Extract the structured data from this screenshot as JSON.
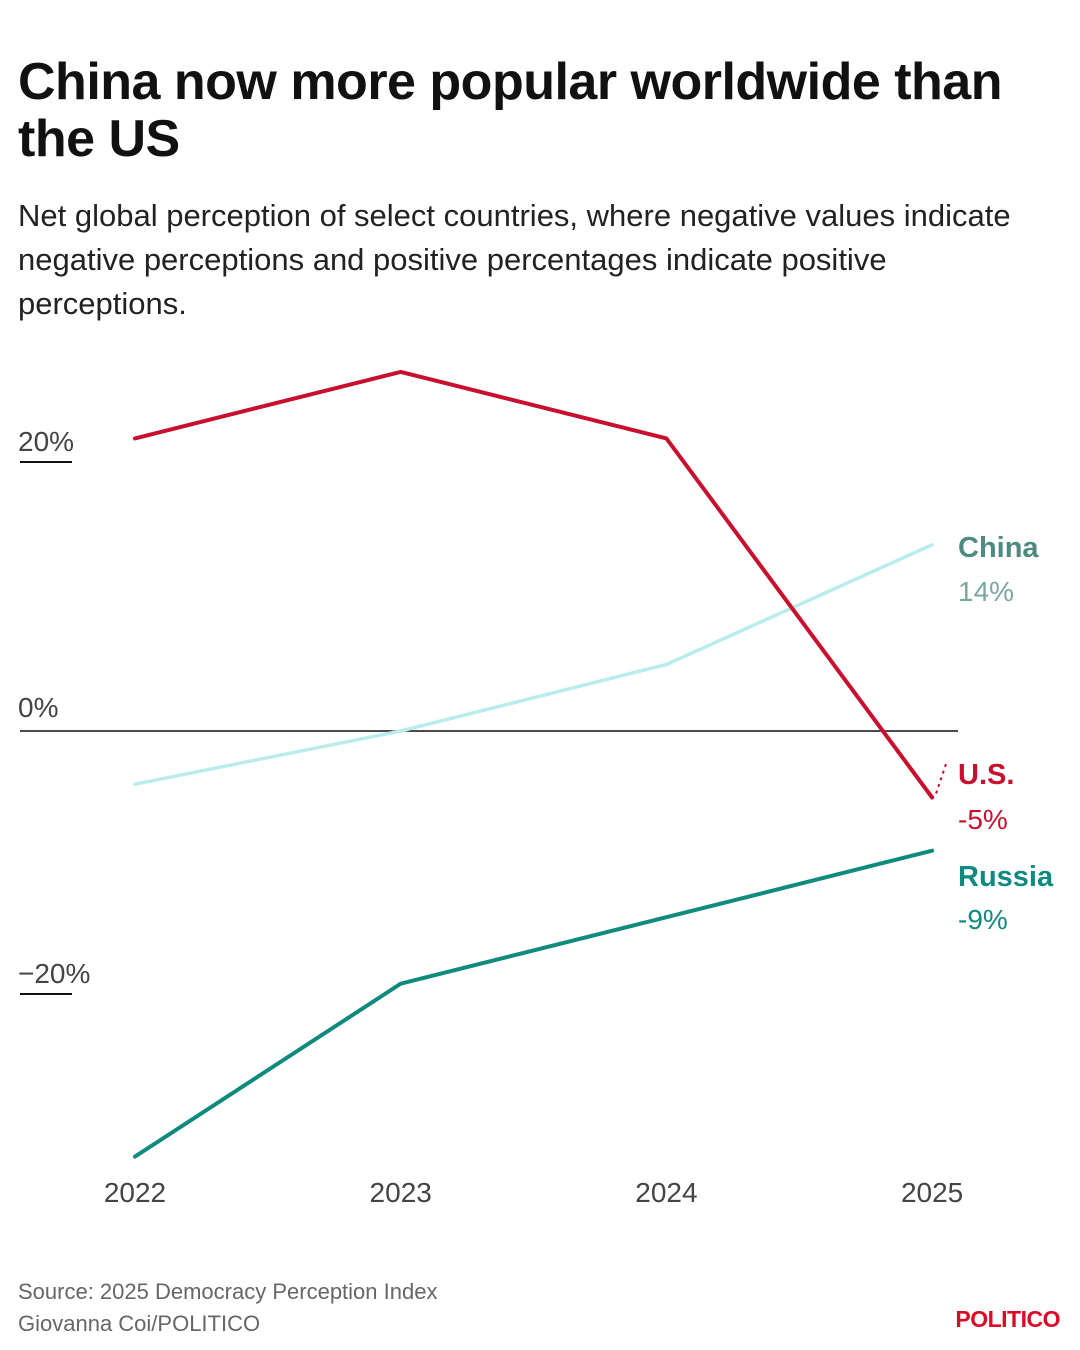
{
  "header": {
    "title": "China now more popular worldwide than the US",
    "subtitle": "Net global perception of select countries, where negative values indicate negative perceptions and positive percentages indicate positive perceptions."
  },
  "chart_data": {
    "type": "line",
    "title": "China now more popular worldwide than the US",
    "subtitle": "Net global perception of select countries, where negative values indicate negative perceptions and positive percentages indicate positive perceptions.",
    "xlabel": "",
    "ylabel": "",
    "x": [
      "2022",
      "2023",
      "2024",
      "2025"
    ],
    "ylim": [
      -32,
      27
    ],
    "y_ticks": [
      20,
      0,
      -20
    ],
    "y_tick_labels": [
      "20%",
      "0%",
      "−20%"
    ],
    "grid": false,
    "zero_line": true,
    "series": [
      {
        "name": "U.S.",
        "values": [
          22,
          27,
          22,
          -5
        ],
        "end_label": "-5%",
        "color": "#c8102e",
        "label_color": "#c8102e",
        "emphasis": "strong"
      },
      {
        "name": "China",
        "values": [
          -4,
          0,
          5,
          14
        ],
        "end_label": "14%",
        "color": "#b9ecec",
        "label_color": "#4d8a82",
        "value_color": "#7aa6a0",
        "emphasis": "light"
      },
      {
        "name": "Russia",
        "values": [
          -32,
          -19,
          -14,
          -9
        ],
        "end_label": "-9%",
        "color": "#0f8a7e",
        "label_color": "#0f8a7e",
        "emphasis": "strong"
      }
    ]
  },
  "footer": {
    "source": "Source: 2025 Democracy Perception Index",
    "credit": "Giovanna Coi/POLITICO",
    "brand": "POLITICO"
  }
}
